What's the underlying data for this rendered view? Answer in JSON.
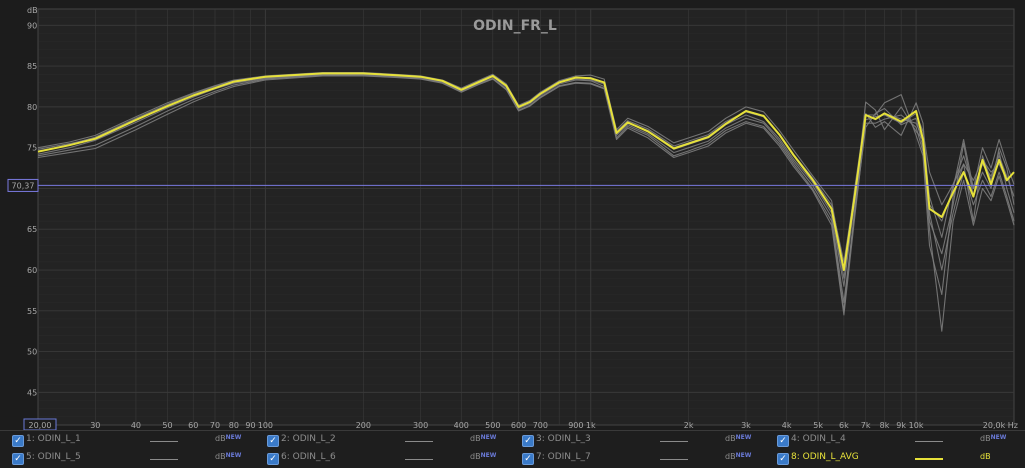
{
  "chart_data": {
    "type": "line",
    "title": "ODIN_FR_L",
    "ylabel": "dB",
    "xunit": "Hz",
    "xscale": "log",
    "xlim": [
      20,
      20000
    ],
    "ylim": [
      41,
      92
    ],
    "grid": true,
    "legend_position": "bottom",
    "x_ticks": [
      {
        "v": 20,
        "label": "20,00"
      },
      {
        "v": 30,
        "label": "30"
      },
      {
        "v": 40,
        "label": "40"
      },
      {
        "v": 50,
        "label": "50"
      },
      {
        "v": 60,
        "label": "60"
      },
      {
        "v": 70,
        "label": "70"
      },
      {
        "v": 80,
        "label": "80"
      },
      {
        "v": 90,
        "label": "90"
      },
      {
        "v": 100,
        "label": "100"
      },
      {
        "v": 200,
        "label": "200"
      },
      {
        "v": 300,
        "label": "300"
      },
      {
        "v": 400,
        "label": "400"
      },
      {
        "v": 500,
        "label": "500"
      },
      {
        "v": 600,
        "label": "600"
      },
      {
        "v": 700,
        "label": "700"
      },
      {
        "v": 900,
        "label": "900"
      },
      {
        "v": 1000,
        "label": "1k"
      },
      {
        "v": 2000,
        "label": "2k"
      },
      {
        "v": 3000,
        "label": "3k"
      },
      {
        "v": 4000,
        "label": "4k"
      },
      {
        "v": 5000,
        "label": "5k"
      },
      {
        "v": 6000,
        "label": "6k"
      },
      {
        "v": 7000,
        "label": "7k"
      },
      {
        "v": 8000,
        "label": "8k"
      },
      {
        "v": 9000,
        "label": "9k"
      },
      {
        "v": 10000,
        "label": "10k"
      },
      {
        "v": 20000,
        "label": "20,0k Hz"
      }
    ],
    "y_ticks": [
      45,
      50,
      55,
      60,
      65,
      75,
      80,
      85,
      90
    ],
    "cursor": {
      "value": 70.37,
      "label": "70,37"
    },
    "x": [
      20,
      25,
      30,
      40,
      50,
      60,
      70,
      80,
      100,
      150,
      200,
      250,
      300,
      350,
      400,
      450,
      500,
      550,
      600,
      650,
      700,
      800,
      900,
      1000,
      1100,
      1200,
      1300,
      1500,
      1800,
      2000,
      2300,
      2600,
      3000,
      3400,
      3800,
      4200,
      4800,
      5500,
      6000,
      6500,
      7000,
      7500,
      8000,
      9000,
      10000,
      10500,
      11000,
      12000,
      13000,
      14000,
      15000,
      16000,
      17000,
      18000,
      19000,
      20000
    ],
    "series": [
      {
        "name": "ODIN_L_1",
        "color": "#7c7c7c",
        "values": [
          75,
          75.7,
          76.5,
          78.8,
          80.5,
          81.7,
          82.6,
          83.3,
          83.8,
          84.2,
          84.2,
          84.0,
          83.8,
          83.3,
          82.3,
          83.2,
          84.0,
          82.8,
          80.2,
          80.8,
          81.8,
          83.2,
          83.6,
          83.5,
          83.0,
          77.0,
          78.3,
          77.3,
          75.2,
          75.8,
          76.6,
          78.2,
          79.4,
          78.8,
          76.6,
          74.2,
          71.3,
          68.0,
          61.0,
          70.0,
          78.4,
          78.8,
          79.0,
          78.0,
          79.2,
          77.0,
          72.0,
          68.0,
          70.5,
          73.0,
          71.0,
          73.5,
          72.0,
          73.0,
          71.0,
          72.0
        ]
      },
      {
        "name": "ODIN_L_2",
        "color": "#7c7c7c",
        "values": [
          74.5,
          75.4,
          76.3,
          78.6,
          80.3,
          81.6,
          82.5,
          83.2,
          83.7,
          84.1,
          84.1,
          83.9,
          83.7,
          83.2,
          82.1,
          83.1,
          83.9,
          82.6,
          80.0,
          80.6,
          81.6,
          83.0,
          83.4,
          83.3,
          82.8,
          76.7,
          78.0,
          77.0,
          74.8,
          75.4,
          76.2,
          77.8,
          79.0,
          78.2,
          76.1,
          73.6,
          70.8,
          67.0,
          58.0,
          69.0,
          80.6,
          79.6,
          77.2,
          80.0,
          77.0,
          76.0,
          66.0,
          62.0,
          68.0,
          75.5,
          69.0,
          72.0,
          70.0,
          75.0,
          72.5,
          68.0
        ]
      },
      {
        "name": "ODIN_L_3",
        "color": "#7c7c7c",
        "values": [
          74.2,
          75.0,
          75.9,
          78.1,
          79.9,
          81.2,
          82.2,
          82.9,
          83.5,
          83.9,
          84.0,
          83.8,
          83.6,
          83.1,
          82.0,
          82.9,
          83.7,
          82.4,
          79.8,
          80.4,
          81.4,
          82.8,
          83.3,
          83.2,
          82.5,
          76.2,
          77.6,
          76.5,
          74.0,
          74.6,
          75.5,
          77.1,
          78.2,
          77.6,
          75.5,
          73.0,
          70.0,
          66.0,
          55.0,
          68.0,
          79.0,
          79.0,
          80.5,
          81.5,
          76.5,
          74.0,
          63.0,
          57.0,
          69.0,
          73.0,
          66.0,
          74.0,
          71.0,
          74.5,
          70.0,
          67.0
        ]
      },
      {
        "name": "ODIN_L_4",
        "color": "#7c7c7c",
        "values": [
          74.8,
          75.5,
          76.2,
          78.4,
          80.1,
          81.4,
          82.3,
          83.0,
          83.6,
          84.0,
          84.1,
          83.9,
          83.7,
          83.2,
          82.2,
          83.0,
          83.8,
          82.7,
          80.1,
          80.7,
          81.7,
          83.2,
          83.8,
          83.9,
          83.4,
          77.2,
          78.6,
          77.6,
          75.6,
          76.2,
          77.0,
          78.6,
          80.0,
          79.4,
          77.1,
          74.7,
          71.6,
          68.5,
          60.0,
          70.5,
          79.2,
          77.5,
          78.2,
          76.5,
          80.5,
          78.0,
          68.0,
          66.0,
          70.0,
          76.0,
          70.0,
          75.0,
          72.5,
          76.0,
          73.0,
          70.5
        ]
      },
      {
        "name": "ODIN_L_5",
        "color": "#7c7c7c",
        "values": [
          74.0,
          74.7,
          75.3,
          77.6,
          79.5,
          80.9,
          81.9,
          82.7,
          83.4,
          83.9,
          83.9,
          83.7,
          83.5,
          83.0,
          81.9,
          82.8,
          83.5,
          82.2,
          79.6,
          80.2,
          81.2,
          82.6,
          83.0,
          82.9,
          82.3,
          76.5,
          77.8,
          76.7,
          74.4,
          75.0,
          75.8,
          77.4,
          78.6,
          78.0,
          75.8,
          73.3,
          70.4,
          66.5,
          56.0,
          67.5,
          77.5,
          79.2,
          79.8,
          77.8,
          78.6,
          75.0,
          67.0,
          60.0,
          67.0,
          72.0,
          68.0,
          71.0,
          69.0,
          72.0,
          69.0,
          66.0
        ]
      },
      {
        "name": "ODIN_L_6",
        "color": "#7c7c7c",
        "values": [
          74.6,
          75.3,
          76.0,
          78.3,
          80.1,
          81.4,
          82.3,
          83.1,
          83.7,
          84.1,
          84.1,
          83.9,
          83.7,
          83.2,
          82.1,
          83.0,
          83.8,
          82.6,
          80.0,
          80.6,
          81.6,
          83.1,
          83.6,
          83.6,
          83.0,
          76.8,
          78.1,
          77.1,
          75.0,
          75.6,
          76.4,
          78.0,
          79.4,
          78.8,
          76.5,
          74.0,
          71.0,
          67.5,
          59.0,
          69.0,
          79.0,
          78.5,
          79.2,
          78.5,
          78.0,
          76.0,
          69.0,
          64.0,
          70.5,
          74.0,
          70.0,
          73.0,
          71.5,
          74.0,
          71.5,
          69.0
        ]
      },
      {
        "name": "ODIN_L_7",
        "color": "#7c7c7c",
        "values": [
          73.8,
          74.4,
          74.9,
          77.2,
          79.1,
          80.6,
          81.7,
          82.5,
          83.3,
          83.8,
          83.8,
          83.6,
          83.4,
          82.9,
          81.8,
          82.7,
          83.4,
          82.1,
          79.5,
          80.1,
          81.1,
          82.5,
          82.9,
          82.8,
          82.2,
          76.0,
          77.4,
          76.2,
          73.8,
          74.4,
          75.2,
          76.8,
          78.0,
          77.4,
          75.2,
          72.7,
          69.8,
          65.5,
          54.5,
          67.0,
          78.0,
          78.0,
          78.5,
          79.0,
          77.5,
          74.5,
          65.0,
          52.5,
          66.0,
          71.0,
          65.5,
          70.0,
          68.5,
          71.5,
          68.5,
          65.5
        ]
      },
      {
        "name": "ODIN_L_AVG",
        "color": "#e6e13a",
        "values": [
          74.5,
          75.3,
          76.1,
          78.4,
          80.1,
          81.4,
          82.3,
          83.1,
          83.7,
          84.1,
          84.1,
          83.9,
          83.7,
          83.2,
          82.1,
          83.0,
          83.8,
          82.6,
          80.0,
          80.6,
          81.6,
          83.0,
          83.6,
          83.5,
          83.0,
          76.8,
          78.1,
          77.0,
          74.9,
          75.5,
          76.3,
          77.9,
          79.5,
          78.9,
          76.6,
          74.1,
          71.1,
          67.5,
          60.0,
          69.5,
          79.0,
          78.5,
          79.2,
          78.2,
          79.5,
          76.0,
          67.5,
          66.5,
          69.5,
          72.0,
          69.0,
          73.5,
          70.5,
          73.5,
          71.0,
          72.0
        ]
      }
    ]
  },
  "legend": {
    "rows": [
      [
        {
          "idx": "1:",
          "name": "ODIN_L_1",
          "unit": "dB",
          "tag": "NEW",
          "avg": false
        },
        {
          "idx": "2:",
          "name": "ODIN_L_2",
          "unit": "dB",
          "tag": "NEW",
          "avg": false
        },
        {
          "idx": "3:",
          "name": "ODIN_L_3",
          "unit": "dB",
          "tag": "NEW",
          "avg": false
        },
        {
          "idx": "4:",
          "name": "ODIN_L_4",
          "unit": "dB",
          "tag": "NEW",
          "avg": false
        }
      ],
      [
        {
          "idx": "5:",
          "name": "ODIN_L_5",
          "unit": "dB",
          "tag": "NEW",
          "avg": false
        },
        {
          "idx": "6:",
          "name": "ODIN_L_6",
          "unit": "dB",
          "tag": "NEW",
          "avg": false
        },
        {
          "idx": "7:",
          "name": "ODIN_L_7",
          "unit": "dB",
          "tag": "NEW",
          "avg": false
        },
        {
          "idx": "8:",
          "name": "ODIN_L_AVG",
          "unit": "dB",
          "tag": "",
          "avg": true
        }
      ]
    ]
  },
  "colors": {
    "background": "#1c1c1c",
    "grid": "#3a3a3a",
    "trace": "#7c7c7c",
    "average": "#e6e13a",
    "cursor": "#7a7ae0"
  }
}
